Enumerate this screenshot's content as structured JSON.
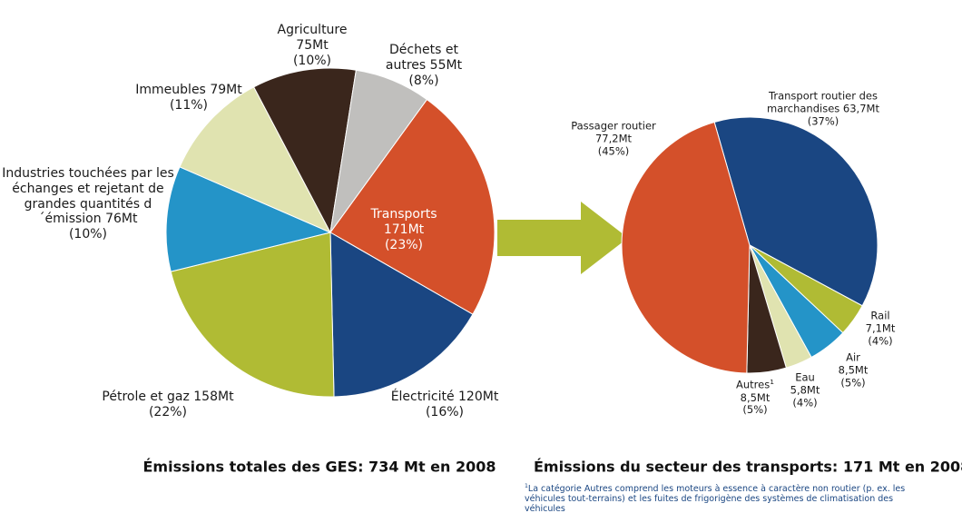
{
  "chart_data": [
    {
      "type": "pie",
      "title": "Émissions totales des GES: 734 Mt en 2008",
      "categories": [
        "Transports",
        "Électricité",
        "Pétrole et gaz",
        "Industries touchées par les échanges et rejetant de grandes quantités d´émission",
        "Immeubles",
        "Agriculture",
        "Déchets et autres"
      ],
      "values": [
        171,
        120,
        158,
        76,
        79,
        75,
        55
      ],
      "value_labels": [
        "171Mt",
        "120Mt",
        "158Mt",
        "76Mt",
        "79Mt",
        "75Mt",
        "55Mt"
      ],
      "percentages": [
        23,
        16,
        22,
        10,
        11,
        10,
        8
      ],
      "percentage_labels": [
        "(23%)",
        "(16%)",
        "(22%)",
        "(10%)",
        "(11%)",
        "(10%)",
        "(8%)"
      ],
      "colors": [
        "#d4502a",
        "#1a4682",
        "#b0bb34",
        "#2494c8",
        "#e0e3b0",
        "#3a261c",
        "#c0bfbd"
      ]
    },
    {
      "type": "pie",
      "title": "Émissions du secteur des transports: 171 Mt en 2008",
      "categories": [
        "Transport routier des marchandises",
        "Rail",
        "Air",
        "Eau",
        "Autres",
        "Passager routier"
      ],
      "values": [
        63.7,
        7.1,
        8.5,
        5.8,
        8.5,
        77.2
      ],
      "value_labels": [
        "63,7Mt",
        "7,1Mt",
        "8,5Mt",
        "5,8Mt",
        "8,5Mt",
        "77,2Mt"
      ],
      "percentages": [
        37,
        4,
        5,
        4,
        5,
        45
      ],
      "percentage_labels": [
        "(37%)",
        "(4%)",
        "(5%)",
        "(4%)",
        "(5%)",
        "(45%)"
      ],
      "colors": [
        "#1a4682",
        "#b0bb34",
        "#2494c8",
        "#e0e3b0",
        "#3a261c",
        "#d4502a"
      ],
      "footnote_marker": "1",
      "footnote": "La catégorie Autres comprend les moteurs à essence à caractère non routier (p. ex. les  véhicules tout-terrains) et les fuites de frigorigène des systèmes de climatisation des véhicules"
    }
  ]
}
